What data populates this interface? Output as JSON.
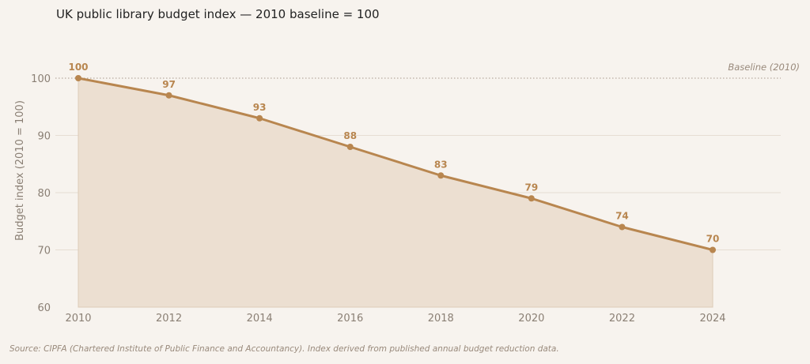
{
  "chart_data": {
    "type": "area",
    "title": "UK public library budget index — 2010 baseline = 100",
    "ylabel": "Budget index (2010 = 100)",
    "xlabel": "",
    "x": [
      2010,
      2012,
      2014,
      2016,
      2018,
      2020,
      2022,
      2024
    ],
    "values": [
      100,
      97,
      93,
      88,
      83,
      79,
      74,
      70
    ],
    "xticks": [
      "2010",
      "2012",
      "2014",
      "2016",
      "2018",
      "2020",
      "2022",
      "2024"
    ],
    "yticks": [
      60,
      70,
      80,
      90,
      100
    ],
    "ylim": [
      60,
      100
    ],
    "grid": true,
    "reference_line": {
      "value": 100,
      "label": "Baseline (2010)"
    },
    "line_color": "#b8864f",
    "fill_color": "#ecdfd1",
    "source": "Source: CIPFA (Chartered Institute of Public Finance and Accountancy). Index derived from published annual budget reduction data."
  }
}
